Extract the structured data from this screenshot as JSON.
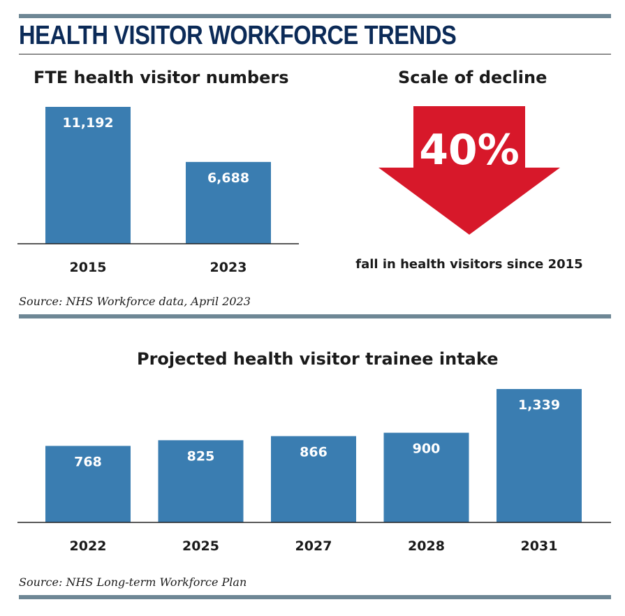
{
  "title": "HEALTH VISITOR WORKFORCE TRENDS",
  "colors": {
    "bar": "#3a7db1",
    "rule": "#6e8795",
    "title": "#0b2a57",
    "arrow": "#d7182a"
  },
  "decline": {
    "heading": "Scale of decline",
    "value": "40%",
    "caption": "fall in health visitors since 2015",
    "icon": "down-arrow-icon"
  },
  "chart_data": [
    {
      "type": "bar",
      "title": "FTE health visitor numbers",
      "categories": [
        "2015",
        "2023"
      ],
      "values": [
        11192,
        6688
      ],
      "value_labels": [
        "11,192",
        "6,688"
      ],
      "ylim": [
        0,
        11192
      ],
      "grid": false,
      "source": "Source: NHS Workforce data, April 2023"
    },
    {
      "type": "bar",
      "title": "Projected health visitor trainee intake",
      "categories": [
        "2022",
        "2025",
        "2027",
        "2028",
        "2031"
      ],
      "values": [
        768,
        825,
        866,
        900,
        1339
      ],
      "value_labels": [
        "768",
        "825",
        "866",
        "900",
        "1,339"
      ],
      "ylim": [
        0,
        1339
      ],
      "grid": false,
      "source": "Source: NHS Long-term Workforce Plan"
    }
  ]
}
